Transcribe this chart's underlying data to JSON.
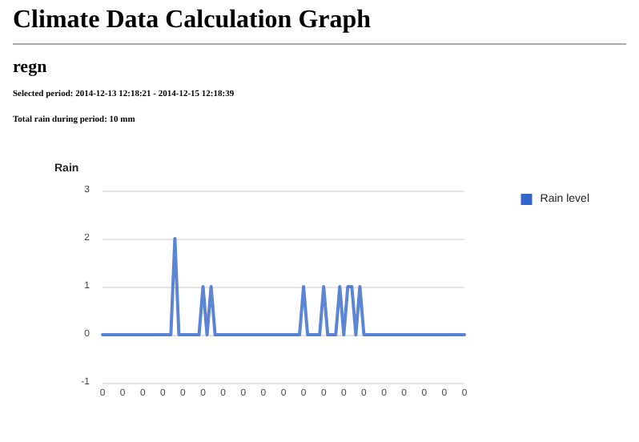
{
  "chart_data": {
    "type": "line",
    "title": "Climate Data Calculation Graph",
    "subtitle": "regn",
    "annotations": [
      "Selected period: 2014-12-13 12:18:21 - 2014-12-15 12:18:39",
      "Total rain during period: 10 mm"
    ],
    "ylabel": "Rain",
    "categories": [
      "0",
      null,
      null,
      null,
      null,
      "0",
      null,
      null,
      null,
      null,
      "0",
      null,
      null,
      null,
      null,
      "0",
      null,
      null,
      null,
      null,
      "0",
      null,
      null,
      null,
      null,
      "0",
      null,
      null,
      null,
      null,
      "0",
      null,
      null,
      null,
      null,
      "0",
      null,
      null,
      null,
      null,
      "0",
      null,
      null,
      null,
      null,
      "0",
      null,
      null,
      null,
      null,
      "0",
      null,
      null,
      null,
      null,
      "0",
      null,
      null,
      null,
      null,
      "0",
      null,
      null,
      null,
      null,
      "0",
      null,
      null,
      null,
      null,
      "0",
      null,
      null,
      null,
      null,
      "0",
      null,
      null,
      null,
      null,
      "0",
      null,
      null,
      null,
      null,
      "0",
      null,
      null,
      null,
      null,
      "0"
    ],
    "series": [
      {
        "name": "Rain level",
        "color": "#3366cc",
        "values": [
          0,
          0,
          0,
          0,
          0,
          0,
          0,
          0,
          0,
          0,
          0,
          0,
          0,
          0,
          0,
          0,
          0,
          0,
          2,
          0,
          0,
          0,
          0,
          0,
          0,
          1,
          0,
          1,
          0,
          0,
          0,
          0,
          0,
          0,
          0,
          0,
          0,
          0,
          0,
          0,
          0,
          0,
          0,
          0,
          0,
          0,
          0,
          0,
          0,
          0,
          1,
          0,
          0,
          0,
          0,
          1,
          0,
          0,
          0,
          1,
          0,
          1,
          1,
          0,
          1,
          0,
          0,
          0,
          0,
          0,
          0,
          0,
          0,
          0,
          0,
          0,
          0,
          0,
          0,
          0,
          0,
          0,
          0,
          0,
          0,
          0,
          0,
          0,
          0,
          0,
          0
        ]
      }
    ],
    "ylim": [
      -1,
      3
    ],
    "yticks": [
      -1,
      0,
      1,
      2,
      3
    ],
    "grid": "y",
    "legend": "top right",
    "marker": "none",
    "line_style": "solid"
  }
}
